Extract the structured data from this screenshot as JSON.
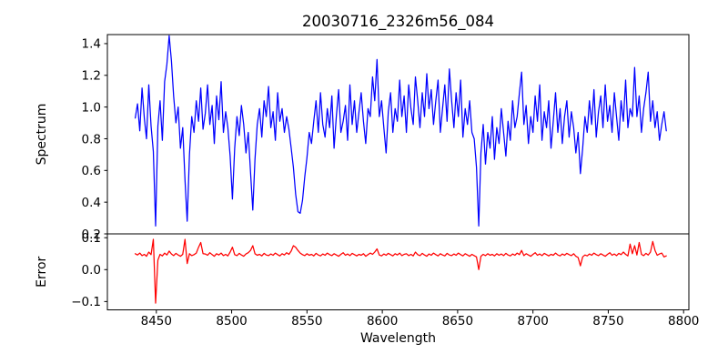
{
  "figure": {
    "background": "#ffffff",
    "spine_color": "#000000",
    "text_color": "#000000"
  },
  "chart_data": {
    "type": "line",
    "title": "20030716_2326m56_084",
    "xlabel": "Wavelength",
    "grid": false,
    "legend": null,
    "xlim": [
      8417.5,
      8803.5
    ],
    "xticks": [
      8450,
      8500,
      8550,
      8600,
      8650,
      8700,
      8750,
      8800
    ],
    "xticklabels": [
      "8450",
      "8500",
      "8550",
      "8600",
      "8650",
      "8700",
      "8750",
      "8800"
    ],
    "panels": [
      {
        "name": "spectrum",
        "ylabel": "Spectrum",
        "color": "#0000ff",
        "ylim": [
          0.2,
          1.457
        ],
        "yticks": [
          1.4,
          1.2,
          1.0,
          0.8,
          0.6,
          0.4,
          0.2
        ],
        "yticklabels": [
          "1.4",
          "1.2",
          "1.0",
          "0.8",
          "0.6",
          "0.4",
          "0.2"
        ],
        "x_start": 8436,
        "x_step": 1.5,
        "features_note": "absorption dips near 8449, 8470, 8500, 8514, 8544 (broad), 8664, 8731; emission spikes near 8458 (1.45), 8596 (1.30), 8692 (1.22), 8767 (1.25), 8776 (1.22)",
        "y": [
          0.93,
          1.02,
          0.85,
          1.12,
          0.93,
          0.8,
          1.14,
          0.88,
          0.72,
          0.25,
          0.88,
          1.04,
          0.79,
          1.16,
          1.27,
          1.45,
          1.29,
          1.07,
          0.9,
          1.0,
          0.74,
          0.87,
          0.54,
          0.28,
          0.7,
          0.94,
          0.84,
          1.04,
          0.91,
          1.12,
          0.86,
          0.96,
          1.14,
          0.89,
          1.01,
          0.77,
          1.07,
          0.92,
          1.16,
          0.84,
          0.97,
          0.87,
          0.69,
          0.42,
          0.74,
          0.94,
          0.82,
          1.01,
          0.89,
          0.71,
          0.84,
          0.59,
          0.35,
          0.67,
          0.89,
          0.99,
          0.81,
          1.04,
          0.94,
          1.13,
          0.87,
          0.97,
          0.79,
          1.09,
          0.91,
          0.99,
          0.84,
          0.94,
          0.86,
          0.74,
          0.62,
          0.45,
          0.34,
          0.33,
          0.41,
          0.56,
          0.68,
          0.84,
          0.77,
          0.91,
          1.04,
          0.84,
          1.09,
          0.89,
          0.81,
          0.99,
          0.87,
          1.07,
          0.74,
          0.94,
          1.11,
          0.84,
          0.91,
          1.01,
          0.79,
          1.14,
          0.89,
          1.04,
          0.84,
          0.97,
          1.09,
          0.91,
          0.77,
          0.99,
          0.94,
          1.19,
          1.04,
          1.3,
          0.94,
          1.04,
          0.87,
          0.71,
          0.97,
          1.09,
          0.84,
          0.99,
          0.91,
          1.17,
          0.94,
          1.07,
          0.84,
          1.14,
          0.99,
          0.89,
          1.19,
          1.04,
          0.87,
          1.09,
          0.94,
          1.21,
          0.99,
          1.11,
          0.89,
          1.04,
          1.17,
          0.84,
          0.99,
          1.14,
          0.91,
          1.24,
          1.04,
          0.87,
          1.09,
          0.94,
          1.17,
          0.81,
          0.99,
          0.89,
          1.04,
          0.84,
          0.8,
          0.62,
          0.25,
          0.71,
          0.89,
          0.64,
          0.84,
          0.74,
          0.94,
          0.67,
          0.87,
          0.77,
          0.99,
          0.84,
          0.69,
          0.91,
          0.79,
          1.04,
          0.87,
          0.94,
          1.09,
          1.22,
          0.89,
          1.01,
          0.77,
          0.94,
          0.84,
          1.07,
          0.91,
          1.14,
          0.79,
          0.97,
          0.87,
          1.04,
          0.74,
          0.91,
          1.09,
          0.84,
          0.99,
          0.77,
          0.94,
          1.04,
          0.81,
          0.97,
          0.87,
          0.71,
          0.84,
          0.58,
          0.74,
          0.94,
          0.84,
          1.04,
          0.89,
          1.11,
          0.81,
          0.97,
          1.07,
          0.87,
          1.14,
          0.91,
          1.01,
          0.84,
          1.09,
          0.94,
          0.79,
          1.04,
          0.91,
          1.17,
          0.87,
          0.99,
          0.94,
          1.25,
          0.94,
          1.07,
          0.84,
          0.99,
          1.09,
          1.22,
          0.91,
          1.04,
          0.87,
          0.97,
          0.79,
          0.89,
          0.97,
          0.85
        ]
      },
      {
        "name": "error",
        "ylabel": "Error",
        "color": "#ff0000",
        "ylim": [
          -0.126,
          0.112
        ],
        "yticks": [
          0.1,
          0.0,
          -0.1
        ],
        "yticklabels": [
          "0.1",
          "0.0",
          "−0.1"
        ],
        "x_start": 8436,
        "x_step": 1.5,
        "features_note": "flat near 0.045; deep spike to -0.105 near 8449; up/down wiggle near 8469; dip to 0.0 near 8664; dip near 8731; spikes to ~0.09 near 8764-8780",
        "y": [
          0.05,
          0.046,
          0.052,
          0.044,
          0.048,
          0.042,
          0.055,
          0.047,
          0.095,
          -0.105,
          0.03,
          0.048,
          0.043,
          0.052,
          0.046,
          0.058,
          0.049,
          0.044,
          0.051,
          0.046,
          0.042,
          0.048,
          0.095,
          0.019,
          0.05,
          0.044,
          0.047,
          0.052,
          0.07,
          0.085,
          0.05,
          0.049,
          0.045,
          0.053,
          0.047,
          0.042,
          0.05,
          0.046,
          0.052,
          0.044,
          0.048,
          0.043,
          0.055,
          0.07,
          0.047,
          0.044,
          0.051,
          0.046,
          0.042,
          0.049,
          0.053,
          0.06,
          0.075,
          0.05,
          0.045,
          0.048,
          0.043,
          0.051,
          0.046,
          0.044,
          0.049,
          0.045,
          0.052,
          0.047,
          0.043,
          0.05,
          0.046,
          0.053,
          0.048,
          0.058,
          0.075,
          0.07,
          0.06,
          0.052,
          0.047,
          0.044,
          0.05,
          0.045,
          0.048,
          0.043,
          0.051,
          0.046,
          0.043,
          0.049,
          0.045,
          0.052,
          0.047,
          0.044,
          0.05,
          0.046,
          0.042,
          0.048,
          0.053,
          0.045,
          0.049,
          0.044,
          0.051,
          0.047,
          0.043,
          0.048,
          0.045,
          0.05,
          0.042,
          0.047,
          0.052,
          0.048,
          0.055,
          0.065,
          0.046,
          0.043,
          0.049,
          0.045,
          0.051,
          0.047,
          0.043,
          0.05,
          0.046,
          0.052,
          0.044,
          0.048,
          0.05,
          0.044,
          0.048,
          0.043,
          0.055,
          0.047,
          0.044,
          0.051,
          0.046,
          0.042,
          0.049,
          0.045,
          0.052,
          0.047,
          0.043,
          0.05,
          0.046,
          0.043,
          0.051,
          0.046,
          0.044,
          0.049,
          0.045,
          0.052,
          0.047,
          0.043,
          0.05,
          0.046,
          0.042,
          0.048,
          0.044,
          0.04,
          0.0,
          0.042,
          0.048,
          0.044,
          0.05,
          0.045,
          0.048,
          0.043,
          0.05,
          0.045,
          0.049,
          0.044,
          0.051,
          0.046,
          0.043,
          0.049,
          0.045,
          0.052,
          0.047,
          0.06,
          0.044,
          0.05,
          0.046,
          0.042,
          0.048,
          0.053,
          0.045,
          0.049,
          0.044,
          0.051,
          0.047,
          0.043,
          0.048,
          0.045,
          0.052,
          0.046,
          0.043,
          0.049,
          0.045,
          0.051,
          0.047,
          0.044,
          0.05,
          0.042,
          0.038,
          0.012,
          0.04,
          0.046,
          0.043,
          0.049,
          0.045,
          0.052,
          0.047,
          0.044,
          0.05,
          0.046,
          0.042,
          0.048,
          0.053,
          0.045,
          0.049,
          0.044,
          0.051,
          0.047,
          0.055,
          0.048,
          0.043,
          0.08,
          0.05,
          0.075,
          0.046,
          0.085,
          0.048,
          0.044,
          0.051,
          0.046,
          0.055,
          0.088,
          0.06,
          0.045,
          0.049,
          0.052,
          0.04,
          0.043
        ]
      }
    ]
  }
}
